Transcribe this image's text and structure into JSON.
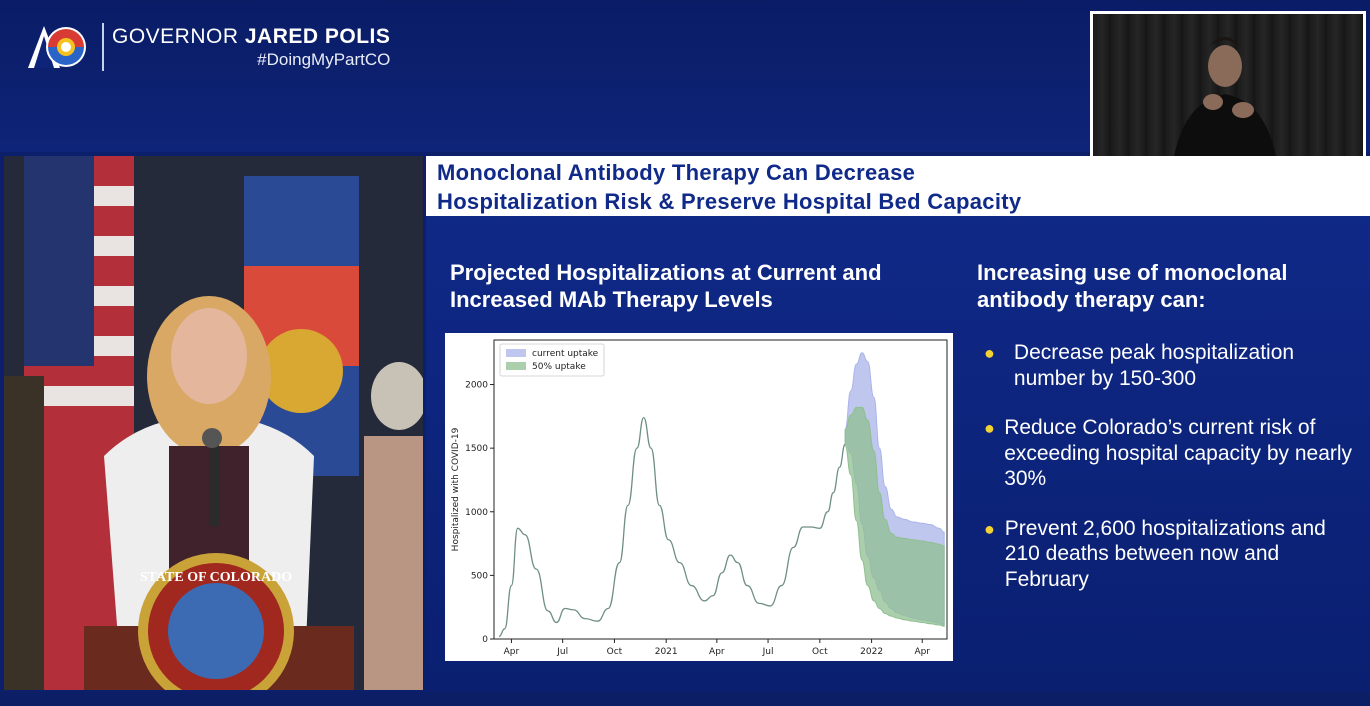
{
  "header": {
    "governor_prefix": "GOVERNOR",
    "governor_name": "JARED POLIS",
    "hashtag": "#DoingMyPartCO",
    "logo_icon": "colorado-state-logo-icon"
  },
  "slide": {
    "title_line1": "Monoclonal Antibody Therapy Can Decrease",
    "title_line2": "Hospitalization Risk & Preserve Hospital Bed Capacity",
    "chart_heading": "Projected Hospitalizations at Current and Increased MAb Therapy Levels",
    "right_heading": "Increasing use of monoclonal antibody therapy can:",
    "bullets": [
      "Decrease peak hospitalization number by 150-300",
      "Reduce Colorado’s current risk of exceeding hospital capacity by nearly 30%",
      "Prevent 2,600 hospitalizations and 210 deaths between now and February"
    ],
    "bullet_color": "#f3d233"
  },
  "podium_seal_text": "STATE OF COLORADO",
  "chart_data": {
    "type": "area",
    "title": "",
    "xlabel": "",
    "ylabel": "Hospitalized with COVID-19",
    "ylim": [
      0,
      2350
    ],
    "yticks": [
      0,
      500,
      1000,
      1500,
      2000
    ],
    "xtick_labels": [
      "Apr",
      "Jul",
      "Oct",
      "2021",
      "Apr",
      "Jul",
      "Oct",
      "2022",
      "Apr"
    ],
    "xtick_dates": [
      "2020-04-01",
      "2020-07-01",
      "2020-10-01",
      "2021-01-01",
      "2021-04-01",
      "2021-07-01",
      "2021-10-01",
      "2022-01-01",
      "2022-04-01"
    ],
    "xlim": [
      "2020-03-01",
      "2022-05-15"
    ],
    "legend_position": "upper-left",
    "history": {
      "x": [
        "2020-03-10",
        "2020-03-20",
        "2020-04-01",
        "2020-04-12",
        "2020-04-25",
        "2020-05-15",
        "2020-06-05",
        "2020-06-20",
        "2020-07-05",
        "2020-07-20",
        "2020-08-10",
        "2020-09-01",
        "2020-09-20",
        "2020-10-10",
        "2020-10-25",
        "2020-11-10",
        "2020-11-22",
        "2020-12-05",
        "2020-12-20",
        "2021-01-05",
        "2021-01-25",
        "2021-02-15",
        "2021-03-10",
        "2021-03-25",
        "2021-04-10",
        "2021-04-25",
        "2021-05-08",
        "2021-05-25",
        "2021-06-15",
        "2021-07-05",
        "2021-07-25",
        "2021-08-15",
        "2021-09-01",
        "2021-09-15",
        "2021-10-01",
        "2021-10-15",
        "2021-10-25",
        "2021-11-05",
        "2021-11-15"
      ],
      "y": [
        20,
        80,
        420,
        870,
        820,
        550,
        220,
        130,
        240,
        230,
        160,
        140,
        240,
        600,
        1050,
        1500,
        1740,
        1500,
        1050,
        780,
        600,
        420,
        300,
        340,
        520,
        660,
        600,
        420,
        280,
        260,
        420,
        720,
        880,
        880,
        870,
        1000,
        1150,
        1350,
        1530
      ]
    },
    "series": [
      {
        "name": "current uptake",
        "color": "#aab4ea",
        "x": [
          "2021-11-15",
          "2021-11-25",
          "2021-12-05",
          "2021-12-15",
          "2021-12-25",
          "2022-01-05",
          "2022-01-15",
          "2022-01-25",
          "2022-02-05",
          "2022-02-15",
          "2022-03-01",
          "2022-03-15",
          "2022-04-01",
          "2022-04-15",
          "2022-05-01",
          "2022-05-10"
        ],
        "upper": [
          1650,
          1950,
          2160,
          2250,
          2180,
          1900,
          1500,
          1200,
          1020,
          960,
          940,
          920,
          910,
          900,
          870,
          840
        ],
        "lower": [
          1550,
          1460,
          1220,
          900,
          650,
          480,
          380,
          290,
          240,
          205,
          185,
          165,
          150,
          140,
          125,
          110
        ]
      },
      {
        "name": "50% uptake",
        "color": "#8fbf90",
        "x": [
          "2021-11-15",
          "2021-11-25",
          "2021-12-05",
          "2021-12-15",
          "2021-12-25",
          "2022-01-05",
          "2022-01-15",
          "2022-01-25",
          "2022-02-05",
          "2022-02-15",
          "2022-03-01",
          "2022-03-15",
          "2022-04-01",
          "2022-04-15",
          "2022-05-01",
          "2022-05-10"
        ],
        "upper": [
          1640,
          1760,
          1820,
          1820,
          1720,
          1480,
          1150,
          940,
          830,
          800,
          790,
          780,
          770,
          760,
          745,
          730
        ],
        "lower": [
          1520,
          1290,
          930,
          620,
          420,
          300,
          240,
          200,
          180,
          165,
          150,
          140,
          130,
          120,
          110,
          100
        ]
      }
    ]
  }
}
